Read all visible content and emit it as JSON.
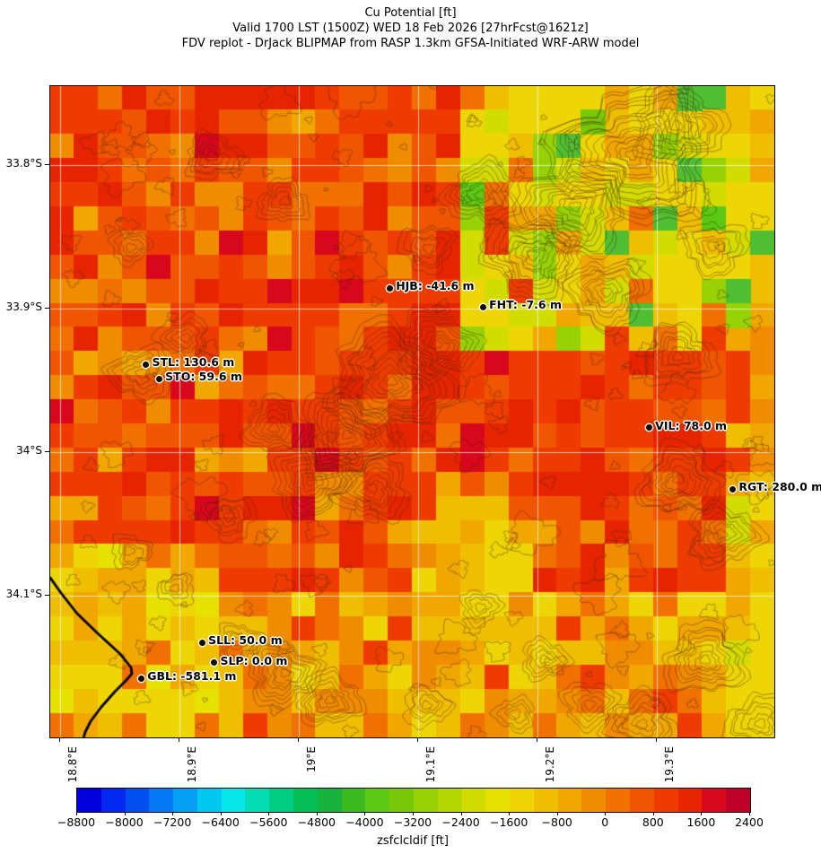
{
  "title": {
    "line1": "Cu Potential [ft]",
    "line2": "Valid 1700 LST (1500Z) WED 18 Feb 2026 [27hrFcst@1621z]",
    "line3": "FDV replot - DrJack BLIPMAP from RASP 1.3km GFSA-Initiated WRF-ARW model"
  },
  "chart_data": {
    "type": "heatmap",
    "title": "Cu Potential [ft]",
    "subtitle": "Valid 1700 LST (1500Z) WED 18 Feb 2026 [27hrFcst@1621z]",
    "source_line": "FDV replot - DrJack BLIPMAP from RASP 1.3km GFSA-Initiated WRF-ARW model",
    "grid": "on",
    "x_axis": {
      "min": 18.792,
      "max": 19.398,
      "ticks": [
        {
          "value": 18.8,
          "label": "18.8°E"
        },
        {
          "value": 18.9,
          "label": "18.9°E"
        },
        {
          "value": 19.0,
          "label": "19°E"
        },
        {
          "value": 19.1,
          "label": "19.1°E"
        },
        {
          "value": 19.2,
          "label": "19.2°E"
        },
        {
          "value": 19.3,
          "label": "19.3°E"
        }
      ]
    },
    "y_axis": {
      "min": 33.745,
      "max": 34.199,
      "ticks": [
        {
          "value": 33.8,
          "label": "33.8°S"
        },
        {
          "value": 33.9,
          "label": "33.9°S"
        },
        {
          "value": 34.0,
          "label": "34°S"
        },
        {
          "value": 34.1,
          "label": "34.1°S"
        }
      ]
    },
    "stations": [
      {
        "code": "HJB",
        "label": "HJB: -41.6 m",
        "value_m": -41.6,
        "lon": 19.076,
        "lat": 33.886
      },
      {
        "code": "FHT",
        "label": "FHT: -7.6 m",
        "value_m": -7.6,
        "lon": 19.154,
        "lat": 33.899
      },
      {
        "code": "STL",
        "label": "STL: 130.6 m",
        "value_m": 130.6,
        "lon": 18.872,
        "lat": 33.939
      },
      {
        "code": "STO",
        "label": "STO: 59.6 m",
        "value_m": 59.6,
        "lon": 18.883,
        "lat": 33.949
      },
      {
        "code": "VIL",
        "label": "VIL: 78.0 m",
        "value_m": 78.0,
        "lon": 19.293,
        "lat": 33.983
      },
      {
        "code": "RGT",
        "label": "RGT: 280.0 m",
        "value_m": 280.0,
        "lon": 19.363,
        "lat": 34.026
      },
      {
        "code": "SLL",
        "label": "SLL: 50.0 m",
        "value_m": 50.0,
        "lon": 18.919,
        "lat": 34.133
      },
      {
        "code": "SLP",
        "label": "SLP: 0.0 m",
        "value_m": 0.0,
        "lon": 18.929,
        "lat": 34.147
      },
      {
        "code": "GBL",
        "label": "GBL: -581.1 m",
        "value_m": -581.1,
        "lon": 18.868,
        "lat": 34.158
      }
    ],
    "colorbar": {
      "label": "zsfclcldif [ft]",
      "min": -8800,
      "max": 2400,
      "segment_step": 400,
      "tick_step": 800,
      "tick_labels": [
        "−8800",
        "−8000",
        "−7200",
        "−6400",
        "−5600",
        "−4800",
        "−4000",
        "−3200",
        "−2400",
        "−1600",
        "−800",
        "0",
        "800",
        "1600",
        "2400"
      ],
      "colors": [
        "#0000dc",
        "#0028f0",
        "#0050f0",
        "#0578f5",
        "#05a0f5",
        "#00c8f0",
        "#06e6e6",
        "#05dcb4",
        "#00cd85",
        "#05be55",
        "#16b43c",
        "#3cb91e",
        "#5ac814",
        "#78c80a",
        "#96d205",
        "#b4d700",
        "#d2dc00",
        "#e6e100",
        "#eed505",
        "#f0be00",
        "#f0a800",
        "#f08c00",
        "#f07000",
        "#f05500",
        "#ee3c00",
        "#e62500",
        "#d7081c",
        "#be0028"
      ]
    }
  }
}
